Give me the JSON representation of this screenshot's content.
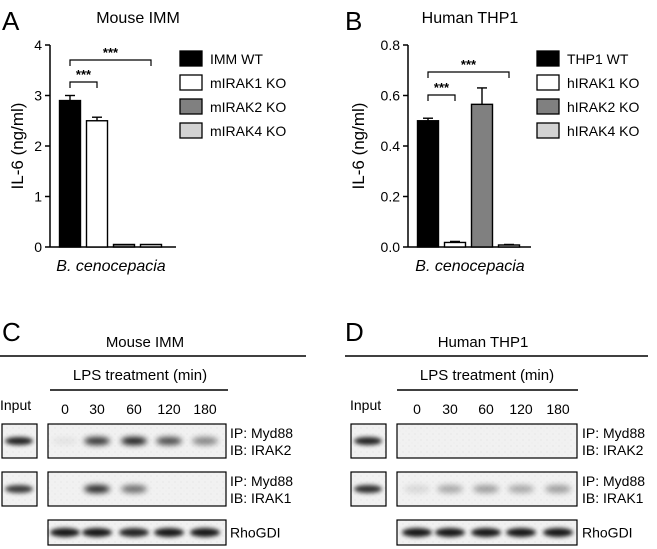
{
  "panel_letters": {
    "a": "A",
    "b": "B",
    "c": "C",
    "d": "D"
  },
  "chart_data": [
    {
      "type": "bar",
      "title": "Mouse IMM",
      "ylabel": "IL-6 (ng/ml)",
      "xlabel": "B. cenocepacia",
      "ylim": [
        0,
        4
      ],
      "yticks": [
        "0",
        "1",
        "2",
        "3",
        "4"
      ],
      "categories": [
        "IMM WT",
        "mIRAK1 KO",
        "mIRAK2 KO",
        "mIRAK4 KO"
      ],
      "values": [
        2.9,
        2.5,
        0.05,
        0.05
      ],
      "errors": [
        0.1,
        0.07,
        0.0,
        0.0
      ],
      "fills": [
        "#000000",
        "#ffffff",
        "#808080",
        "#d3d3d3"
      ],
      "significance": [
        {
          "from": 0,
          "to": 1,
          "label": "***"
        },
        {
          "from": 0,
          "to": 3,
          "label": "***"
        }
      ],
      "legend_position": "right"
    },
    {
      "type": "bar",
      "title": "Human THP1",
      "ylabel": "IL-6 (ng/ml)",
      "xlabel": "B. cenocepacia",
      "ylim": [
        0,
        0.8
      ],
      "yticks": [
        "0.0",
        "0.2",
        "0.4",
        "0.6",
        "0.8"
      ],
      "categories": [
        "THP1 WT",
        "hIRAK1 KO",
        "hIRAK2 KO",
        "hIRAK4 KO"
      ],
      "values": [
        0.5,
        0.018,
        0.565,
        0.008
      ],
      "errors": [
        0.01,
        0.004,
        0.065,
        0.002
      ],
      "fills": [
        "#000000",
        "#ffffff",
        "#808080",
        "#d3d3d3"
      ],
      "significance": [
        {
          "from": 0,
          "to": 1,
          "label": "***"
        },
        {
          "from": 0,
          "to": 3,
          "label": "***"
        }
      ],
      "legend_position": "right"
    }
  ],
  "blots": {
    "left": {
      "title": "Mouse IMM",
      "treatment_label": "LPS treatment (min)",
      "input_label": "Input",
      "timepoints": [
        "0",
        "30",
        "60",
        "120",
        "180"
      ],
      "rows": [
        {
          "ip": "IP: Myd88",
          "ib": "IB: IRAK2",
          "input_band": 0.85,
          "bands": [
            0.05,
            0.8,
            0.9,
            0.7,
            0.45
          ]
        },
        {
          "ip": "IP: Myd88",
          "ib": "IB: IRAK1",
          "input_band": 0.75,
          "bands": [
            0.0,
            0.85,
            0.55,
            0.0,
            0.0
          ]
        },
        {
          "label": "RhoGDI",
          "bands": [
            0.9,
            0.9,
            0.85,
            0.9,
            0.9
          ]
        }
      ]
    },
    "right": {
      "title": "Human THP1",
      "treatment_label": "LPS treatment (min)",
      "input_label": "Input",
      "timepoints": [
        "0",
        "30",
        "60",
        "120",
        "180"
      ],
      "rows": [
        {
          "ip": "IP: Myd88",
          "ib": "IB: IRAK2",
          "input_band": 0.85,
          "bands": [
            0.0,
            0.0,
            0.0,
            0.0,
            0.0
          ]
        },
        {
          "ip": "IP: Myd88",
          "ib": "IB: IRAK1",
          "input_band": 0.8,
          "bands": [
            0.1,
            0.3,
            0.35,
            0.3,
            0.35
          ]
        },
        {
          "label": "RhoGDI",
          "bands": [
            0.9,
            0.9,
            0.9,
            0.9,
            0.9
          ]
        }
      ]
    }
  }
}
